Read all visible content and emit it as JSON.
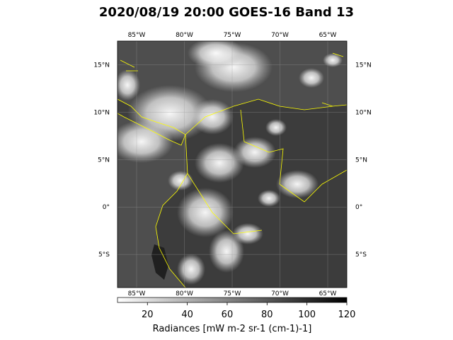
{
  "title": "2020/08/19 20:00 GOES-16 Band 13",
  "map": {
    "lon_range": [
      -87,
      -63
    ],
    "lat_range": [
      -8.5,
      17.5
    ],
    "lon_ticks": [
      {
        "value": -85,
        "label": "85°W"
      },
      {
        "value": -80,
        "label": "80°W"
      },
      {
        "value": -75,
        "label": "75°W"
      },
      {
        "value": -70,
        "label": "70°W"
      },
      {
        "value": -65,
        "label": "65°W"
      }
    ],
    "lat_ticks": [
      {
        "value": 15,
        "label": "15°N"
      },
      {
        "value": 10,
        "label": "10°N"
      },
      {
        "value": 5,
        "label": "5°N"
      },
      {
        "value": 0,
        "label": "0°"
      },
      {
        "value": -5,
        "label": "5°S"
      }
    ],
    "coastline_color": "#ffff00",
    "gridline_color": "#9a9a9a"
  },
  "colorbar": {
    "range": [
      5,
      120
    ],
    "ticks": [
      {
        "value": 20,
        "label": "20"
      },
      {
        "value": 40,
        "label": "40"
      },
      {
        "value": 60,
        "label": "60"
      },
      {
        "value": 80,
        "label": "80"
      },
      {
        "value": 100,
        "label": "100"
      },
      {
        "value": 120,
        "label": "120"
      }
    ],
    "label": "Radiances [mW m-2 sr-1 (cm-1)-1]",
    "colormap": "Greys (white = low, black = high)"
  }
}
